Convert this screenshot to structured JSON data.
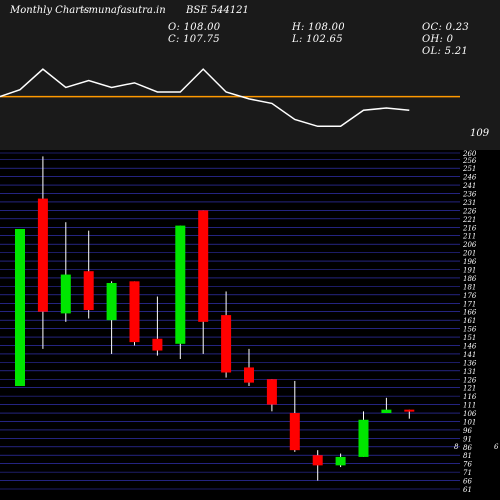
{
  "header": {
    "period": "Monthly Charts",
    "site": "- munafasutra.in",
    "symbol": "BSE 544121",
    "O": "O: 108.00",
    "C": "C: 107.75",
    "H": "H: 108.00",
    "L": "L: 102.65",
    "OC": "OC: 0.23",
    "OH": "OH: 0",
    "OL": "OL: 5.21"
  },
  "indicator": {
    "level_label": "109",
    "level_color": "#ff9900",
    "line_color": "#ffffff",
    "values": [
      112,
      121,
      113,
      116,
      113,
      115,
      111,
      111,
      121,
      111,
      108,
      106,
      99,
      96,
      96,
      103,
      104,
      103
    ]
  },
  "colors": {
    "background": "#000000",
    "panel": "#1a1a1a",
    "up": "#00e600",
    "down": "#ff0000",
    "grid": "#3a3acc",
    "wick": "#ffffff"
  },
  "right_edge_labels": [
    "6",
    "8"
  ],
  "chart_data": {
    "type": "candlestick",
    "title": "",
    "xlabel": "",
    "ylabel": "",
    "ylim": [
      61,
      260
    ],
    "yticks": [
      260,
      256,
      251,
      246,
      241,
      236,
      231,
      226,
      221,
      216,
      211,
      206,
      201,
      196,
      191,
      186,
      181,
      176,
      171,
      166,
      161,
      156,
      151,
      146,
      141,
      136,
      131,
      126,
      121,
      116,
      111,
      106,
      101,
      96,
      91,
      86,
      81,
      76,
      71,
      66,
      61
    ],
    "candles": [
      {
        "open": 122,
        "close": 215,
        "high": 215,
        "low": 122
      },
      {
        "open": 233,
        "close": 166,
        "high": 258,
        "low": 144
      },
      {
        "open": 165,
        "close": 188,
        "high": 219,
        "low": 160
      },
      {
        "open": 190,
        "close": 167,
        "high": 214,
        "low": 162
      },
      {
        "open": 161,
        "close": 183,
        "high": 184,
        "low": 141
      },
      {
        "open": 184,
        "close": 148,
        "high": 184,
        "low": 146
      },
      {
        "open": 150,
        "close": 143,
        "high": 175,
        "low": 140
      },
      {
        "open": 147,
        "close": 217,
        "high": 217,
        "low": 138
      },
      {
        "open": 226,
        "close": 160,
        "high": 226,
        "low": 141
      },
      {
        "open": 164,
        "close": 130,
        "high": 178,
        "low": 127
      },
      {
        "open": 133,
        "close": 124,
        "high": 144,
        "low": 122
      },
      {
        "open": 126,
        "close": 111,
        "high": 126,
        "low": 107
      },
      {
        "open": 106,
        "close": 84,
        "high": 125,
        "low": 83
      },
      {
        "open": 81,
        "close": 75,
        "high": 84,
        "low": 66
      },
      {
        "open": 75,
        "close": 80,
        "high": 82,
        "low": 74
      },
      {
        "open": 80,
        "close": 102,
        "high": 107,
        "low": 80
      },
      {
        "open": 106,
        "close": 108,
        "high": 115,
        "low": 106
      },
      {
        "open": 108,
        "close": 107.75,
        "high": 108,
        "low": 102.65
      }
    ]
  }
}
